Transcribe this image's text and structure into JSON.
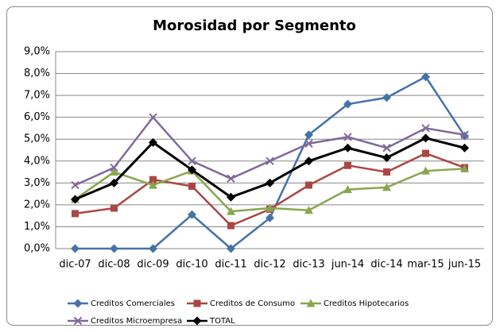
{
  "chart_data": {
    "type": "line",
    "title": "Morosidad por Segmento",
    "categories": [
      "dic-07",
      "dic-08",
      "dic-09",
      "dic-10",
      "dic-11",
      "dic-12",
      "dic-13",
      "jun-14",
      "dic-14",
      "mar-15",
      "jun-15"
    ],
    "series": [
      {
        "name": "Creditos Comerciales",
        "color": "#4572A7",
        "marker": "diamond",
        "values": [
          0,
          0,
          0,
          1.55,
          0,
          1.4,
          5.2,
          6.6,
          6.9,
          7.85,
          5.15
        ]
      },
      {
        "name": "Creditos de Consumo",
        "color": "#AA4643",
        "marker": "square",
        "values": [
          1.6,
          1.85,
          3.15,
          2.85,
          1.05,
          1.8,
          2.9,
          3.8,
          3.5,
          4.35,
          3.7
        ]
      },
      {
        "name": "Creditos Hipotecarios",
        "color": "#89A54E",
        "marker": "triangle",
        "values": [
          2.25,
          3.5,
          2.9,
          3.55,
          1.7,
          1.85,
          1.75,
          2.7,
          2.8,
          3.55,
          3.65
        ]
      },
      {
        "name": "Creditos Microempresa",
        "color": "#80699B",
        "marker": "x",
        "values": [
          2.9,
          3.7,
          6.0,
          4.0,
          3.2,
          4.0,
          4.8,
          5.1,
          4.6,
          5.5,
          5.2
        ]
      },
      {
        "name": "TOTAL",
        "color": "#000000",
        "marker": "diamond",
        "values": [
          2.25,
          3.0,
          4.85,
          3.6,
          2.35,
          3.0,
          4.0,
          4.6,
          4.15,
          5.05,
          4.6
        ]
      }
    ],
    "ylim": [
      0,
      9
    ],
    "yticks": [
      {
        "value": 0,
        "label": "0,0%"
      },
      {
        "value": 1,
        "label": "1,0%"
      },
      {
        "value": 2,
        "label": "2,0%"
      },
      {
        "value": 3,
        "label": "3,0%"
      },
      {
        "value": 4,
        "label": "4,0%"
      },
      {
        "value": 5,
        "label": "5,0%"
      },
      {
        "value": 6,
        "label": "6,0%"
      },
      {
        "value": 7,
        "label": "7,0%"
      },
      {
        "value": 8,
        "label": "8,0%"
      },
      {
        "value": 9,
        "label": "9,0%"
      }
    ],
    "grid": true,
    "legend": "bottom"
  }
}
